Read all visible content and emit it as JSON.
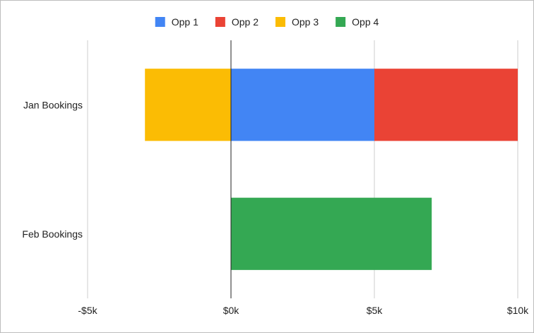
{
  "chart_data": {
    "type": "bar",
    "orientation": "horizontal",
    "stacked": true,
    "title": "",
    "xlabel": "",
    "ylabel": "",
    "categories": [
      "Jan Bookings",
      "Feb Bookings"
    ],
    "series": [
      {
        "name": "Opp 1",
        "color": "#4285F4",
        "values": [
          5000,
          null
        ]
      },
      {
        "name": "Opp 2",
        "color": "#EA4335",
        "values": [
          5000,
          null
        ]
      },
      {
        "name": "Opp 3",
        "color": "#FBBC04",
        "values": [
          -3000,
          null
        ]
      },
      {
        "name": "Opp 4",
        "color": "#34A853",
        "values": [
          null,
          7000
        ]
      }
    ],
    "xlim": [
      -5000,
      10000
    ],
    "xticks": [
      -5000,
      0,
      5000,
      10000
    ],
    "xtick_labels": [
      "-$5k",
      "$0k",
      "$5k",
      "$10k"
    ],
    "grid": true,
    "legend": "top-center"
  }
}
